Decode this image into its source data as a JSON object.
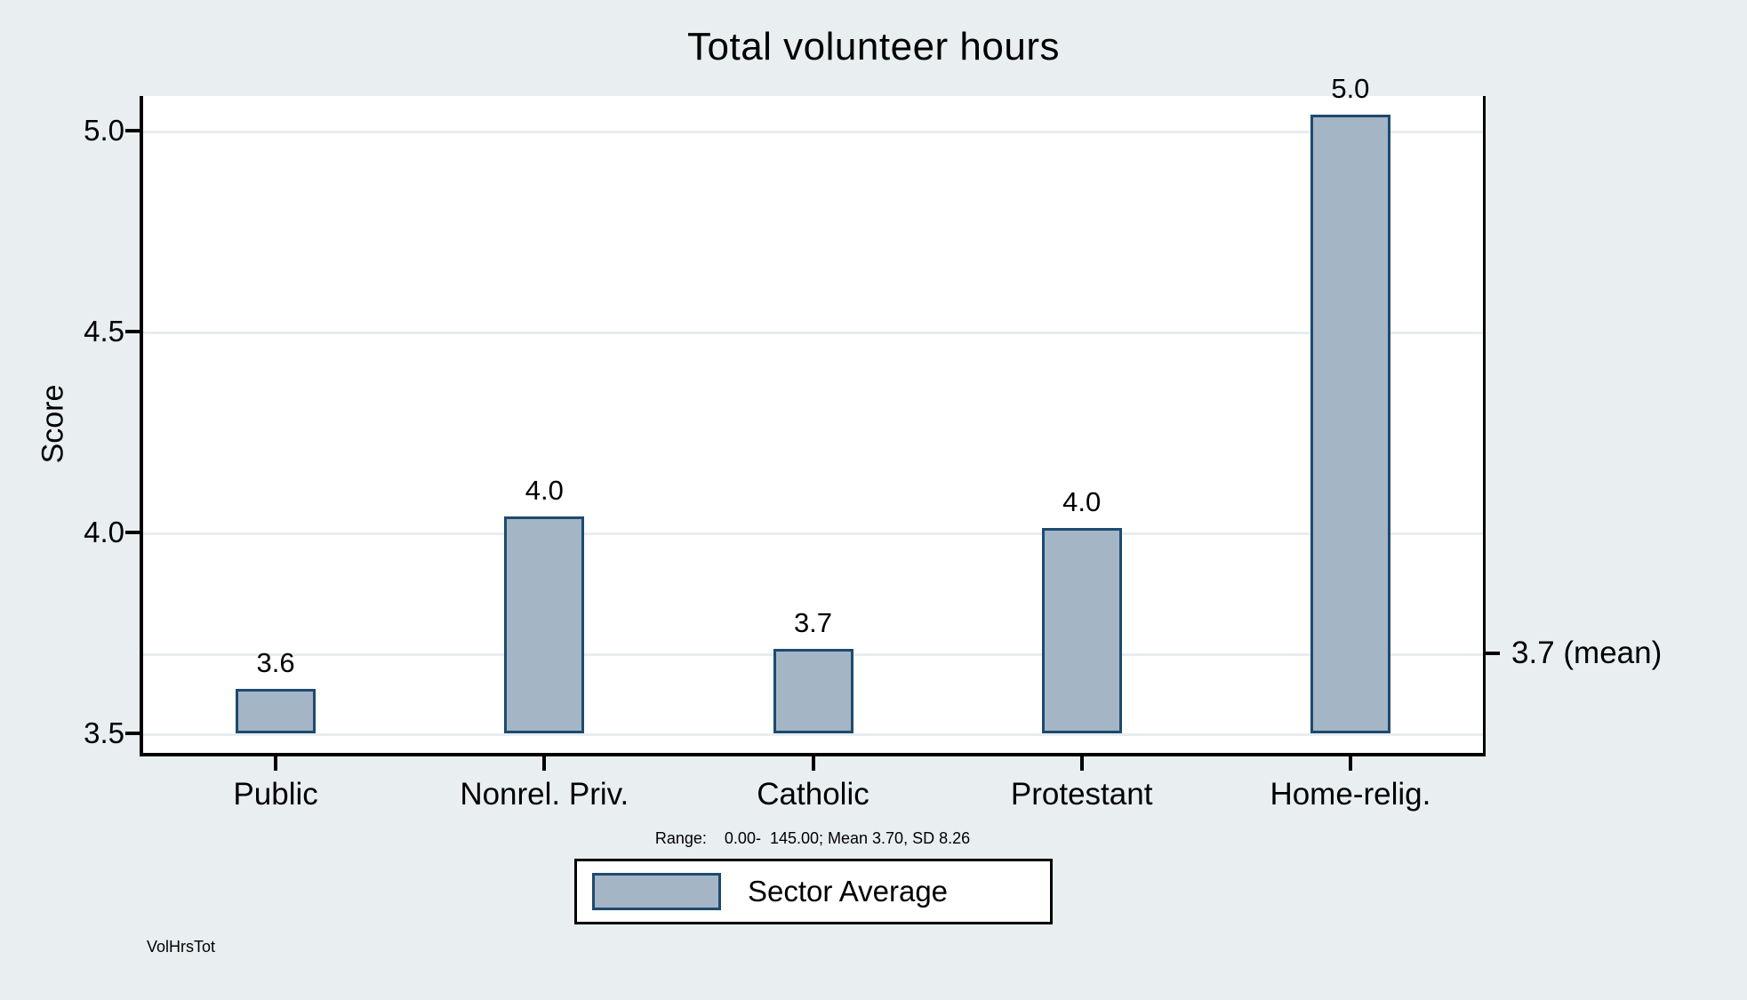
{
  "colors": {
    "background": "#e9eef1",
    "plot_background": "#ffffff",
    "bar_fill": "#a4b5c6",
    "bar_stroke": "#1e4a6e",
    "gridline": "#e7edf0",
    "axis": "#000000"
  },
  "chart_data": {
    "type": "bar",
    "title": "Total volunteer hours",
    "categories": [
      "Public",
      "Nonrel. Priv.",
      "Catholic",
      "Protestant",
      "Home-relig."
    ],
    "values": [
      3.6,
      4.0,
      3.7,
      4.0,
      5.0
    ],
    "bar_value_labels": [
      "3.6",
      "4.0",
      "3.7",
      "4.0",
      "5.0"
    ],
    "render_values": [
      3.61,
      4.04,
      3.71,
      4.01,
      5.04
    ],
    "xlabel": "",
    "ylabel": "Score",
    "ylim": [
      3.45,
      5.1
    ],
    "yticks": [
      5.0,
      4.5,
      4.0,
      3.5
    ],
    "ytick_labels": [
      "5.0",
      "4.5",
      "4.0",
      "3.5"
    ],
    "grid": true,
    "legend_position": "bottom",
    "mean_line": {
      "value": 3.7,
      "label": "3.7 (mean)"
    },
    "legend": {
      "entries": [
        "Sector Average"
      ]
    },
    "note": "Range:    0.00-  145.00; Mean 3.70, SD 8.26",
    "caption": "VolHrsTot"
  }
}
